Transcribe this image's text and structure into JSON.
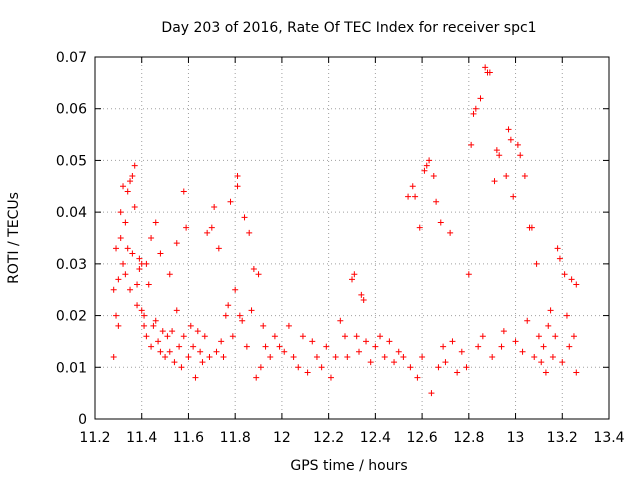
{
  "chart_data": {
    "type": "scatter",
    "title": "Day 203 of 2016, Rate Of TEC Index for receiver spc1",
    "xlabel": "GPS time / hours",
    "ylabel": "ROTI / TECUs",
    "xlim": [
      11.2,
      13.4
    ],
    "ylim": [
      0,
      0.07
    ],
    "xticks": [
      11.2,
      11.4,
      11.6,
      11.8,
      12,
      12.2,
      12.4,
      12.6,
      12.8,
      13,
      13.2,
      13.4
    ],
    "xtick_labels": [
      "11.2",
      "11.4",
      "11.6",
      "11.8",
      "12",
      "12.2",
      "12.4",
      "12.6",
      "12.8",
      "13",
      "13.2",
      "13.4"
    ],
    "yticks": [
      0,
      0.01,
      0.02,
      0.03,
      0.04,
      0.05,
      0.06,
      0.07
    ],
    "ytick_labels": [
      "0",
      "0.01",
      "0.02",
      "0.03",
      "0.04",
      "0.05",
      "0.06",
      "0.07"
    ],
    "grid": true,
    "marker": "+",
    "color": "#ff0000",
    "series": [
      {
        "name": "spc1",
        "points": [
          [
            11.28,
            0.012
          ],
          [
            11.28,
            0.025
          ],
          [
            11.29,
            0.033
          ],
          [
            11.29,
            0.02
          ],
          [
            11.3,
            0.018
          ],
          [
            11.3,
            0.027
          ],
          [
            11.31,
            0.035
          ],
          [
            11.31,
            0.04
          ],
          [
            11.32,
            0.045
          ],
          [
            11.32,
            0.03
          ],
          [
            11.33,
            0.028
          ],
          [
            11.33,
            0.038
          ],
          [
            11.34,
            0.044
          ],
          [
            11.34,
            0.033
          ],
          [
            11.35,
            0.046
          ],
          [
            11.35,
            0.025
          ],
          [
            11.36,
            0.047
          ],
          [
            11.36,
            0.032
          ],
          [
            11.37,
            0.041
          ],
          [
            11.37,
            0.049
          ],
          [
            11.38,
            0.026
          ],
          [
            11.38,
            0.022
          ],
          [
            11.39,
            0.031
          ],
          [
            11.39,
            0.029
          ],
          [
            11.4,
            0.021
          ],
          [
            11.4,
            0.03
          ],
          [
            11.41,
            0.018
          ],
          [
            11.41,
            0.02
          ],
          [
            11.42,
            0.016
          ],
          [
            11.42,
            0.03
          ],
          [
            11.43,
            0.026
          ],
          [
            11.44,
            0.035
          ],
          [
            11.44,
            0.014
          ],
          [
            11.45,
            0.018
          ],
          [
            11.46,
            0.019
          ],
          [
            11.46,
            0.038
          ],
          [
            11.47,
            0.015
          ],
          [
            11.48,
            0.013
          ],
          [
            11.48,
            0.032
          ],
          [
            11.49,
            0.017
          ],
          [
            11.5,
            0.012
          ],
          [
            11.51,
            0.016
          ],
          [
            11.52,
            0.028
          ],
          [
            11.52,
            0.013
          ],
          [
            11.53,
            0.017
          ],
          [
            11.54,
            0.011
          ],
          [
            11.55,
            0.021
          ],
          [
            11.55,
            0.034
          ],
          [
            11.56,
            0.014
          ],
          [
            11.57,
            0.01
          ],
          [
            11.58,
            0.044
          ],
          [
            11.58,
            0.016
          ],
          [
            11.59,
            0.037
          ],
          [
            11.6,
            0.012
          ],
          [
            11.61,
            0.018
          ],
          [
            11.62,
            0.014
          ],
          [
            11.63,
            0.008
          ],
          [
            11.64,
            0.017
          ],
          [
            11.65,
            0.013
          ],
          [
            11.66,
            0.011
          ],
          [
            11.67,
            0.016
          ],
          [
            11.68,
            0.036
          ],
          [
            11.69,
            0.012
          ],
          [
            11.7,
            0.037
          ],
          [
            11.71,
            0.041
          ],
          [
            11.72,
            0.013
          ],
          [
            11.73,
            0.033
          ],
          [
            11.74,
            0.015
          ],
          [
            11.75,
            0.012
          ],
          [
            11.76,
            0.02
          ],
          [
            11.77,
            0.022
          ],
          [
            11.78,
            0.042
          ],
          [
            11.79,
            0.016
          ],
          [
            11.8,
            0.025
          ],
          [
            11.81,
            0.047
          ],
          [
            11.81,
            0.045
          ],
          [
            11.82,
            0.02
          ],
          [
            11.83,
            0.019
          ],
          [
            11.84,
            0.039
          ],
          [
            11.85,
            0.014
          ],
          [
            11.86,
            0.036
          ],
          [
            11.87,
            0.021
          ],
          [
            11.88,
            0.029
          ],
          [
            11.89,
            0.008
          ],
          [
            11.9,
            0.028
          ],
          [
            11.91,
            0.01
          ],
          [
            11.92,
            0.018
          ],
          [
            11.93,
            0.014
          ],
          [
            11.95,
            0.012
          ],
          [
            11.97,
            0.016
          ],
          [
            11.99,
            0.014
          ],
          [
            12.01,
            0.013
          ],
          [
            12.03,
            0.018
          ],
          [
            12.05,
            0.012
          ],
          [
            12.07,
            0.01
          ],
          [
            12.09,
            0.016
          ],
          [
            12.11,
            0.009
          ],
          [
            12.13,
            0.015
          ],
          [
            12.15,
            0.012
          ],
          [
            12.17,
            0.01
          ],
          [
            12.19,
            0.014
          ],
          [
            12.21,
            0.008
          ],
          [
            12.23,
            0.012
          ],
          [
            12.25,
            0.019
          ],
          [
            12.27,
            0.016
          ],
          [
            12.28,
            0.012
          ],
          [
            12.3,
            0.027
          ],
          [
            12.31,
            0.028
          ],
          [
            12.32,
            0.016
          ],
          [
            12.33,
            0.013
          ],
          [
            12.34,
            0.024
          ],
          [
            12.35,
            0.023
          ],
          [
            12.36,
            0.015
          ],
          [
            12.38,
            0.011
          ],
          [
            12.4,
            0.014
          ],
          [
            12.42,
            0.016
          ],
          [
            12.44,
            0.012
          ],
          [
            12.46,
            0.015
          ],
          [
            12.48,
            0.011
          ],
          [
            12.5,
            0.013
          ],
          [
            12.52,
            0.012
          ],
          [
            12.54,
            0.043
          ],
          [
            12.55,
            0.01
          ],
          [
            12.56,
            0.045
          ],
          [
            12.57,
            0.043
          ],
          [
            12.58,
            0.008
          ],
          [
            12.59,
            0.037
          ],
          [
            12.6,
            0.012
          ],
          [
            12.61,
            0.048
          ],
          [
            12.62,
            0.049
          ],
          [
            12.63,
            0.05
          ],
          [
            12.64,
            0.005
          ],
          [
            12.65,
            0.047
          ],
          [
            12.66,
            0.042
          ],
          [
            12.67,
            0.01
          ],
          [
            12.68,
            0.038
          ],
          [
            12.69,
            0.014
          ],
          [
            12.7,
            0.011
          ],
          [
            12.72,
            0.036
          ],
          [
            12.73,
            0.015
          ],
          [
            12.75,
            0.009
          ],
          [
            12.77,
            0.013
          ],
          [
            12.79,
            0.01
          ],
          [
            12.8,
            0.028
          ],
          [
            12.81,
            0.053
          ],
          [
            12.82,
            0.059
          ],
          [
            12.83,
            0.06
          ],
          [
            12.84,
            0.014
          ],
          [
            12.85,
            0.062
          ],
          [
            12.86,
            0.016
          ],
          [
            12.87,
            0.068
          ],
          [
            12.88,
            0.067
          ],
          [
            12.89,
            0.067
          ],
          [
            12.9,
            0.012
          ],
          [
            12.91,
            0.046
          ],
          [
            12.92,
            0.052
          ],
          [
            12.93,
            0.051
          ],
          [
            12.94,
            0.014
          ],
          [
            12.95,
            0.017
          ],
          [
            12.96,
            0.047
          ],
          [
            12.97,
            0.056
          ],
          [
            12.98,
            0.054
          ],
          [
            12.99,
            0.043
          ],
          [
            13.0,
            0.015
          ],
          [
            13.01,
            0.053
          ],
          [
            13.02,
            0.051
          ],
          [
            13.03,
            0.013
          ],
          [
            13.04,
            0.047
          ],
          [
            13.05,
            0.019
          ],
          [
            13.06,
            0.037
          ],
          [
            13.07,
            0.037
          ],
          [
            13.08,
            0.012
          ],
          [
            13.09,
            0.03
          ],
          [
            13.1,
            0.016
          ],
          [
            13.11,
            0.011
          ],
          [
            13.12,
            0.014
          ],
          [
            13.13,
            0.009
          ],
          [
            13.14,
            0.018
          ],
          [
            13.15,
            0.021
          ],
          [
            13.16,
            0.012
          ],
          [
            13.17,
            0.016
          ],
          [
            13.18,
            0.033
          ],
          [
            13.19,
            0.031
          ],
          [
            13.2,
            0.011
          ],
          [
            13.21,
            0.028
          ],
          [
            13.22,
            0.02
          ],
          [
            13.23,
            0.014
          ],
          [
            13.24,
            0.027
          ],
          [
            13.25,
            0.016
          ],
          [
            13.26,
            0.026
          ],
          [
            13.26,
            0.009
          ]
        ]
      }
    ]
  }
}
